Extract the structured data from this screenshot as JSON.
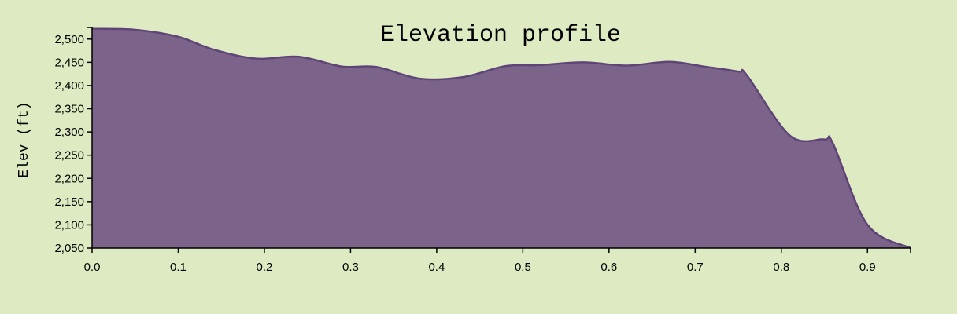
{
  "chart_data": {
    "type": "area",
    "title": "Elevation profile",
    "xlabel": "",
    "ylabel": "Elev (ft)",
    "xlim": [
      0,
      0.95
    ],
    "ylim": [
      2050,
      2525
    ],
    "x_ticks": [
      "0.0",
      "0.1",
      "0.2",
      "0.3",
      "0.4",
      "0.5",
      "0.6",
      "0.7",
      "0.8",
      "0.9"
    ],
    "y_ticks": [
      "2,050",
      "2,100",
      "2,150",
      "2,200",
      "2,250",
      "2,300",
      "2,350",
      "2,400",
      "2,450",
      "2,500"
    ],
    "grid": false,
    "legend": "none",
    "colors": {
      "fill": "#7b6389",
      "stroke": "#5f4478",
      "background": "#deebc2"
    },
    "series": [
      {
        "x": [
          0.0,
          0.05,
          0.1,
          0.14,
          0.19,
          0.24,
          0.29,
          0.33,
          0.38,
          0.43,
          0.48,
          0.52,
          0.57,
          0.62,
          0.67,
          0.71,
          0.75,
          0.76,
          0.81,
          0.85,
          0.86,
          0.9,
          0.95
        ],
        "y": [
          2522,
          2520,
          2505,
          2478,
          2458,
          2462,
          2441,
          2440,
          2415,
          2418,
          2442,
          2444,
          2450,
          2443,
          2451,
          2441,
          2430,
          2422,
          2292,
          2284,
          2275,
          2100,
          2050
        ]
      }
    ]
  }
}
